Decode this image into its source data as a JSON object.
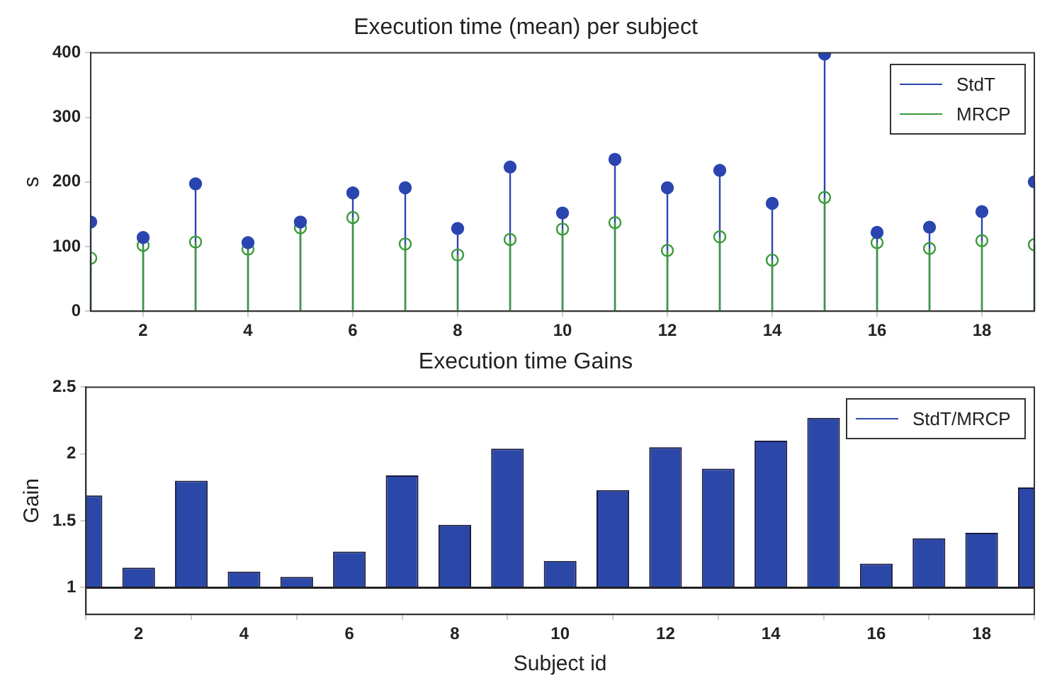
{
  "chart_data": [
    {
      "type": "lollipop",
      "title": "Execution time (mean) per subject",
      "ylabel": "s",
      "x": [
        1,
        2,
        3,
        4,
        5,
        6,
        7,
        8,
        9,
        10,
        11,
        12,
        13,
        14,
        15,
        16,
        17,
        18,
        19
      ],
      "xlim": [
        1,
        19
      ],
      "xticks": [
        2,
        4,
        6,
        8,
        10,
        12,
        14,
        16,
        18
      ],
      "ylim": [
        0,
        400
      ],
      "yticks": [
        0,
        100,
        200,
        300,
        400
      ],
      "marker": "circle",
      "legend": "top right",
      "series": [
        {
          "name": "StdT",
          "color": "#2b45b0",
          "values": [
            138,
            114,
            197,
            106,
            138,
            183,
            191,
            128,
            223,
            152,
            235,
            191,
            218,
            167,
            398,
            122,
            130,
            154,
            200
          ]
        },
        {
          "name": "MRCP",
          "color": "#3a9a3a",
          "values": [
            82,
            102,
            107,
            96,
            129,
            145,
            104,
            87,
            111,
            127,
            137,
            94,
            115,
            79,
            176,
            106,
            97,
            109,
            103
          ]
        }
      ]
    },
    {
      "type": "bar",
      "title": "Execution time Gains",
      "xlabel": "Subject id",
      "ylabel": "Gain",
      "x": [
        1,
        2,
        3,
        4,
        5,
        6,
        7,
        8,
        9,
        10,
        11,
        12,
        13,
        14,
        15,
        16,
        17,
        18,
        19
      ],
      "xlim": [
        1,
        19
      ],
      "xticks": [
        2,
        4,
        6,
        8,
        10,
        12,
        14,
        16,
        18
      ],
      "ylim": [
        0.8,
        2.5
      ],
      "yticks": [
        1,
        1.5,
        2,
        2.5
      ],
      "legend": "top right",
      "ref_lines": [
        {
          "axis": "y",
          "value": 1,
          "color": "#222222"
        }
      ],
      "series": [
        {
          "name": "StdT/MRCP",
          "color": "#2b48a8",
          "base": [
            1,
            1,
            1,
            1,
            1,
            1,
            1,
            1,
            1,
            1,
            1,
            1,
            1,
            1,
            1,
            1,
            1,
            1,
            1
          ],
          "values": [
            0.69,
            0.15,
            0.8,
            0.12,
            0.08,
            0.27,
            0.84,
            0.47,
            1.04,
            0.2,
            0.73,
            1.05,
            0.89,
            1.1,
            1.27,
            0.18,
            0.37,
            0.41,
            0.75
          ]
        }
      ]
    }
  ]
}
